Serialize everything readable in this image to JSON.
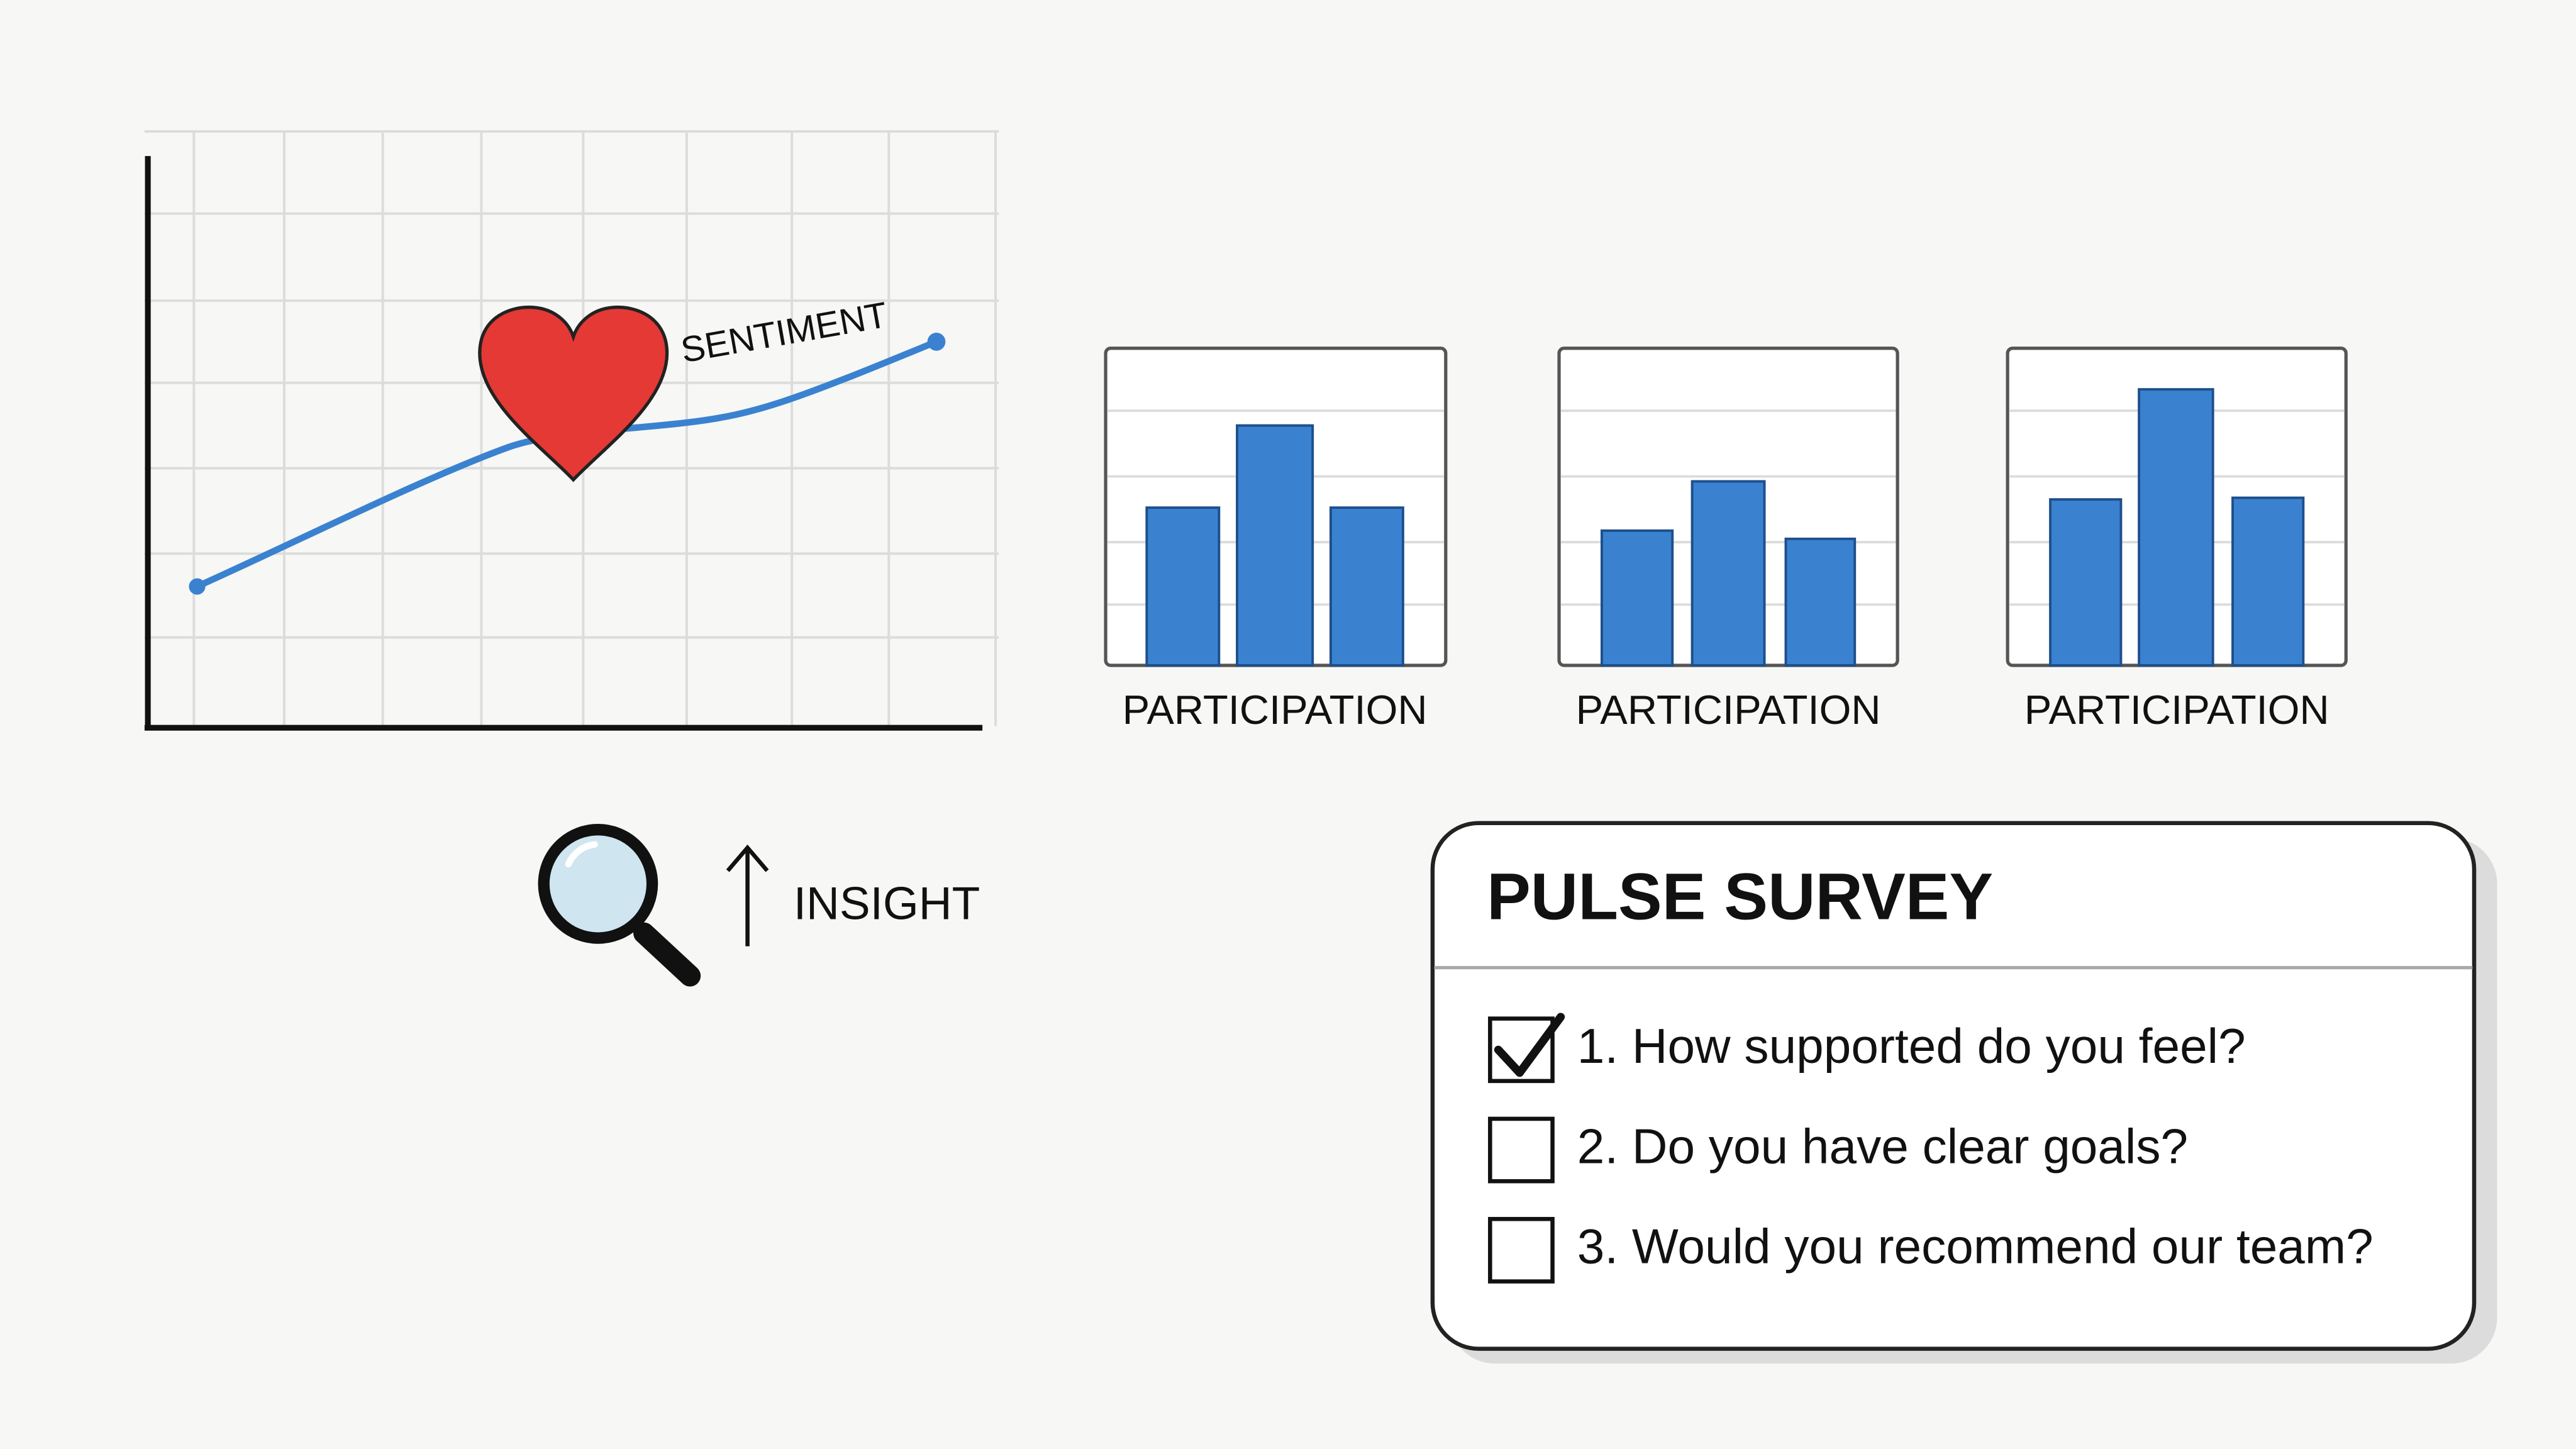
{
  "sentiment_chart": {
    "label": "SENTIMENT"
  },
  "participation_charts": [
    {
      "label": "PARTICIPATION"
    },
    {
      "label": "PARTICIPATION"
    },
    {
      "label": "PARTICIPATION"
    }
  ],
  "insight": {
    "label": "INSIGHT"
  },
  "pulse_survey": {
    "title": "PULSE SURVEY",
    "questions": [
      {
        "text": "1. How supported do you feel?",
        "checked": true
      },
      {
        "text": "2. Do you have clear goals?",
        "checked": false
      },
      {
        "text": "3. Would you recommend our team?",
        "checked": false
      }
    ]
  }
}
